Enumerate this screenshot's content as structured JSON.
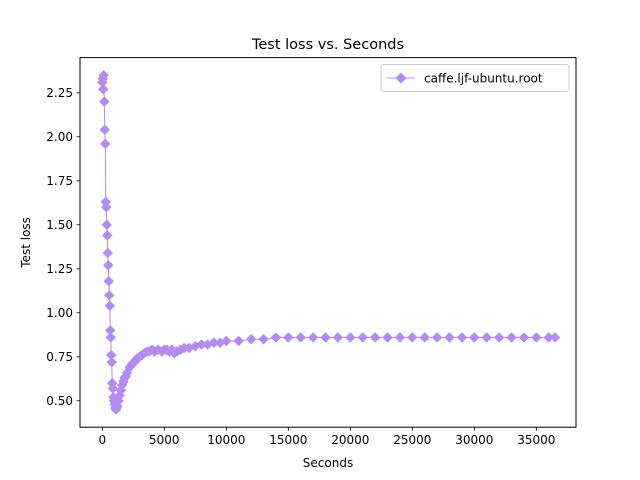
{
  "chart_data": {
    "type": "line",
    "title": "Test loss  vs. Seconds",
    "xlabel": "Seconds",
    "ylabel": "Test loss",
    "xlim": [
      -1800,
      38200
    ],
    "ylim": [
      0.35,
      2.45
    ],
    "xticks": [
      0,
      5000,
      10000,
      15000,
      20000,
      25000,
      30000,
      35000
    ],
    "yticks": [
      0.5,
      0.75,
      1.0,
      1.25,
      1.5,
      1.75,
      2.0,
      2.25
    ],
    "grid": false,
    "legend_position": "top-right",
    "marker": "diamond",
    "series": [
      {
        "name": "caffe.ljf-ubuntu.root",
        "color": "#b48cf0",
        "x": [
          0,
          40,
          80,
          120,
          160,
          200,
          240,
          280,
          320,
          360,
          400,
          440,
          480,
          520,
          560,
          600,
          640,
          680,
          720,
          760,
          800,
          850,
          900,
          950,
          1000,
          1050,
          1100,
          1150,
          1200,
          1300,
          1400,
          1500,
          1600,
          1700,
          1800,
          1900,
          2000,
          2200,
          2400,
          2600,
          2800,
          3000,
          3200,
          3400,
          3600,
          3800,
          4000,
          4200,
          4500,
          4800,
          5000,
          5200,
          5400,
          5600,
          5800,
          6000,
          6300,
          6600,
          7000,
          7500,
          8000,
          8500,
          9000,
          9500,
          10000,
          11000,
          12000,
          13000,
          14000,
          15000,
          16000,
          17000,
          18000,
          19000,
          20000,
          21000,
          22000,
          23000,
          24000,
          25000,
          26000,
          27000,
          28000,
          29000,
          30000,
          31000,
          32000,
          33000,
          34000,
          35000,
          36000,
          36500
        ],
        "y": [
          2.31,
          2.33,
          2.27,
          2.35,
          2.2,
          2.04,
          1.96,
          1.63,
          1.6,
          1.5,
          1.44,
          1.34,
          1.27,
          1.18,
          1.1,
          1.04,
          0.9,
          0.86,
          0.76,
          0.72,
          0.6,
          0.57,
          0.52,
          0.5,
          0.48,
          0.46,
          0.45,
          0.46,
          0.47,
          0.5,
          0.53,
          0.56,
          0.59,
          0.61,
          0.63,
          0.64,
          0.66,
          0.69,
          0.71,
          0.72,
          0.74,
          0.75,
          0.76,
          0.77,
          0.78,
          0.78,
          0.79,
          0.78,
          0.79,
          0.78,
          0.79,
          0.79,
          0.78,
          0.79,
          0.77,
          0.78,
          0.79,
          0.8,
          0.8,
          0.81,
          0.82,
          0.82,
          0.83,
          0.83,
          0.84,
          0.84,
          0.85,
          0.85,
          0.86,
          0.86,
          0.86,
          0.86,
          0.86,
          0.86,
          0.86,
          0.86,
          0.86,
          0.86,
          0.86,
          0.86,
          0.86,
          0.86,
          0.86,
          0.86,
          0.86,
          0.86,
          0.86,
          0.86,
          0.86,
          0.86,
          0.86,
          0.86
        ]
      }
    ]
  }
}
